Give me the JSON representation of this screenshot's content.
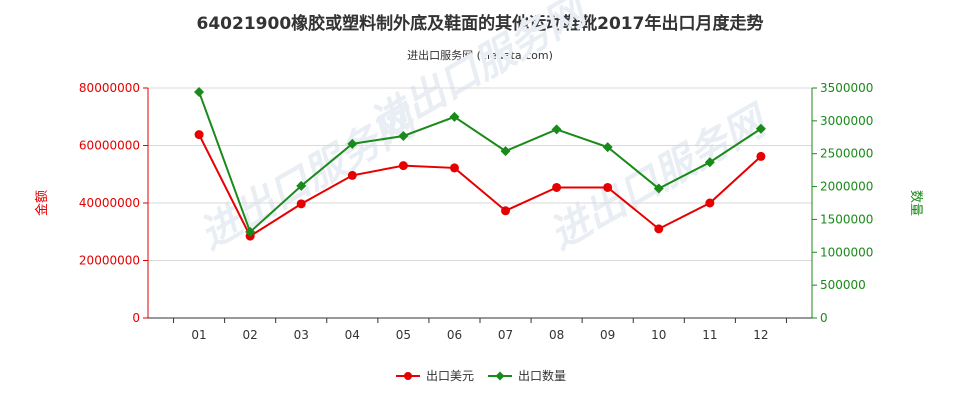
{
  "title": "64021900橡胶或塑料制外底及鞋面的其他运动鞋靴2017年出口月度走势",
  "subtitle": "进出口服务网 (ciedata.com)",
  "colors": {
    "usd": "#e60000",
    "qty": "#1a8a1a",
    "axis": "#333333"
  },
  "chart_data": {
    "type": "line",
    "categories": [
      "01",
      "02",
      "03",
      "04",
      "05",
      "06",
      "07",
      "08",
      "09",
      "10",
      "11",
      "12"
    ],
    "left_axis": {
      "label": "金额",
      "min": 0,
      "max": 80000000,
      "ticks": [
        "0",
        "20000000",
        "40000000",
        "60000000",
        "80000000"
      ]
    },
    "right_axis": {
      "label": "数量",
      "min": 0,
      "max": 3500000,
      "ticks": [
        "0",
        "500000",
        "1000000",
        "1500000",
        "2000000",
        "2500000",
        "3000000",
        "3500000"
      ]
    },
    "series": [
      {
        "name": "出口美元",
        "axis": "left",
        "color": "#e60000",
        "values": [
          63800000,
          28500000,
          39700000,
          49600000,
          53000000,
          52200000,
          37300000,
          45400000,
          45400000,
          31000000,
          40000000,
          56200000
        ]
      },
      {
        "name": "出口数量",
        "axis": "right",
        "color": "#1a8a1a",
        "values": [
          3440000,
          1310000,
          2010000,
          2650000,
          2770000,
          3060000,
          2540000,
          2870000,
          2600000,
          1970000,
          2370000,
          2880000
        ]
      }
    ],
    "watermark": "进出口服务网"
  }
}
